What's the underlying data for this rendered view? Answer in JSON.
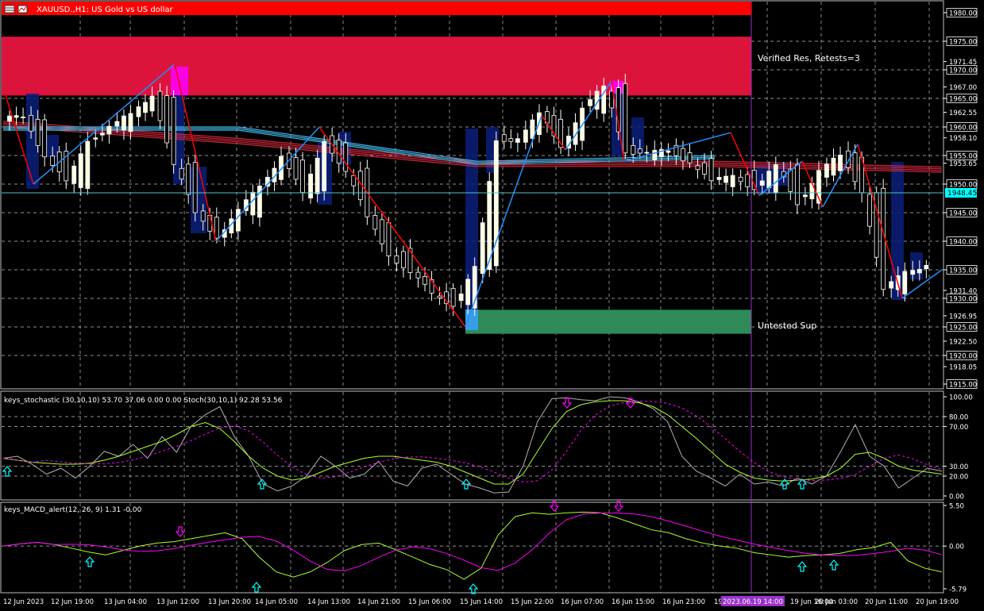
{
  "window": {
    "title": "XAUUSD.,H1: US Gold vs US dollar"
  },
  "chart_data": [
    {
      "type": "candlestick",
      "title": "XAUUSD.,H1: US Gold vs US dollar",
      "symbol": "XAUUSD.",
      "timeframe": "H1",
      "ylim": [
        1915,
        1980
      ],
      "grid": true,
      "price_labels": [
        "1980.00",
        "1975.00",
        "1971.45",
        "1970.00",
        "1967.00",
        "1965.00",
        "1962.55",
        "1960.00",
        "1958.10",
        "1955.00",
        "1953.65",
        "1950.00",
        "1945.00",
        "1940.00",
        "1935.00",
        "1931.40",
        "1930.00",
        "1926.95",
        "1925.00",
        "1922.50",
        "1920.00",
        "1918.05",
        "1915.00"
      ],
      "current_price": "1948.45",
      "zones": [
        {
          "label": "Verified Res, Retests=3",
          "from": 1965.5,
          "to": 1975.8,
          "color": "#dc143c"
        },
        {
          "label": "Untested Sup",
          "from": 1923.8,
          "to": 1928.0,
          "color": "#2e8b57"
        }
      ],
      "zigzag": [
        1966,
        1950,
        1971,
        1940,
        1960,
        1925,
        1962,
        1956,
        1968,
        1954,
        1959,
        1948,
        1954,
        1946,
        1957,
        1930,
        1935
      ],
      "moving_averages": {
        "red_band": [
          1961,
          1958,
          1954,
          1954,
          1953
        ],
        "cyan_band": [
          1960,
          1960,
          1954,
          1955,
          1955
        ]
      },
      "series": [
        {
          "name": "close",
          "values": [
            1962,
            1955,
            1950,
            1958,
            1960,
            1962,
            1966,
            1953,
            1945,
            1941,
            1945,
            1950,
            1955,
            1948,
            1958,
            1952,
            1944,
            1938,
            1934,
            1931,
            1929,
            1935,
            1958,
            1958,
            1962,
            1957,
            1963,
            1967,
            1956,
            1955,
            1956,
            1954,
            1950,
            1952,
            1949,
            1953,
            1947,
            1952,
            1955,
            1949,
            1931,
            1935,
            1936
          ]
        }
      ]
    },
    {
      "type": "line",
      "title": "keys_stochastic (30,10,10) 53.70 37.06 0.00 0.00 Stoch(30,10,1) 92.28 53.56",
      "ylim": [
        0,
        100
      ],
      "tick_labels": [
        "100.00",
        "80.00",
        "70.00",
        "30.00",
        "20.00",
        "0.00"
      ]
    },
    {
      "type": "line",
      "title": "keys_MACD_alert(12, 26, 9) 1.31 -0.00",
      "ylim": [
        -5.79,
        5.5
      ],
      "tick_labels": [
        "5.50",
        "0.00",
        "-5.79"
      ]
    }
  ],
  "time_axis": [
    "12 Jun 2023",
    "12 Jun 19:00",
    "13 Jun 04:00",
    "13 Jun 12:00",
    "13 Jun 20:00",
    "14 Jun 05:00",
    "14 Jun 13:00",
    "14 Jun 21:00",
    "15 Jun 06:00",
    "15 Jun 14:00",
    "15 Jun 22:00",
    "16 Jun 07:00",
    "16 Jun 15:00",
    "16 Jun 23:00",
    "19 Jun 08:00",
    "2023.06.19 14:00",
    "19 Jun 16:00",
    "20 Jun 03:00",
    "20 Jun 11:00",
    "20 Jun 19:00"
  ],
  "colors": {
    "background": "#000000",
    "grid": "#c0c0c0",
    "bull": "#ffffe0",
    "bear": "#000000",
    "candle_outline": "#ffffff",
    "zigzag_up": "#1e90ff",
    "zigzag_down": "#ff0000",
    "crosshair": "#9932cc",
    "up_arrow": "#00ffff",
    "down_arrow": "#ff00ff"
  }
}
